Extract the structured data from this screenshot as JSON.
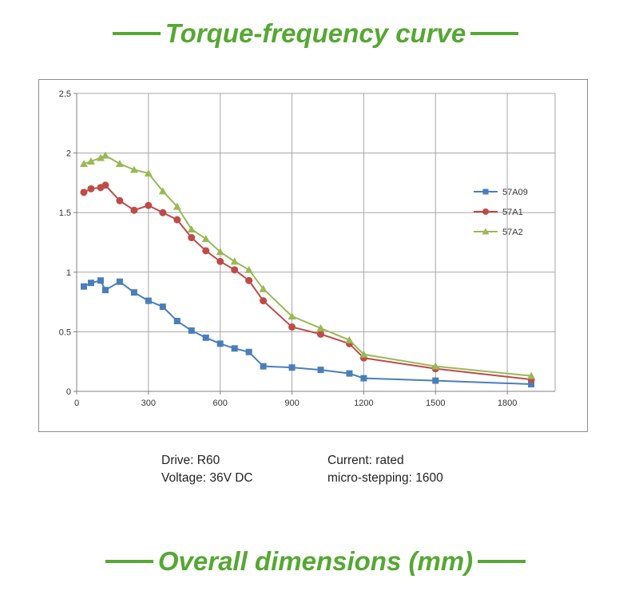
{
  "headings": {
    "top": "Torque-frequency curve",
    "bottom": "Overall dimensions (mm)"
  },
  "colors": {
    "accent": "#55a832",
    "series_57A09": "#4a7ebb",
    "series_57A1": "#be4b48",
    "series_57A2": "#98b954",
    "grid": "#a6a6a6"
  },
  "specs": {
    "drive": "Drive: R60",
    "voltage": "Voltage: 36V DC",
    "current": "Current: rated",
    "microstepping": "micro-stepping: 1600"
  },
  "chart_data": {
    "type": "line",
    "title": "",
    "xlabel": "",
    "ylabel": "",
    "xlim": [
      0,
      2000
    ],
    "ylim": [
      0,
      2.5
    ],
    "xticks": [
      0,
      300,
      600,
      900,
      1200,
      1500,
      1800
    ],
    "yticks": [
      0,
      0.5,
      1,
      1.5,
      2,
      2.5
    ],
    "ytick_labels": [
      "0",
      "0.5",
      "1",
      "1.5",
      "2",
      "2.5"
    ],
    "grid": true,
    "legend_position": "right",
    "series": [
      {
        "name": "57A09",
        "marker": "square",
        "x": [
          30,
          60,
          100,
          120,
          180,
          240,
          300,
          360,
          420,
          480,
          540,
          600,
          660,
          720,
          780,
          900,
          1020,
          1140,
          1200,
          1500,
          1900
        ],
        "y": [
          0.88,
          0.91,
          0.93,
          0.85,
          0.92,
          0.83,
          0.76,
          0.71,
          0.59,
          0.51,
          0.45,
          0.4,
          0.36,
          0.33,
          0.21,
          0.2,
          0.18,
          0.15,
          0.11,
          0.09,
          0.06
        ]
      },
      {
        "name": "57A1",
        "marker": "circle",
        "x": [
          30,
          60,
          100,
          120,
          180,
          240,
          300,
          360,
          420,
          480,
          540,
          600,
          660,
          720,
          780,
          900,
          1020,
          1140,
          1200,
          1500,
          1900
        ],
        "y": [
          1.67,
          1.7,
          1.71,
          1.73,
          1.6,
          1.52,
          1.56,
          1.5,
          1.44,
          1.29,
          1.18,
          1.09,
          1.02,
          0.93,
          0.76,
          0.54,
          0.48,
          0.4,
          0.28,
          0.19,
          0.1
        ]
      },
      {
        "name": "57A2",
        "marker": "triangle",
        "x": [
          30,
          60,
          100,
          120,
          180,
          240,
          300,
          360,
          420,
          480,
          540,
          600,
          660,
          720,
          780,
          900,
          1020,
          1140,
          1200,
          1500,
          1900
        ],
        "y": [
          1.91,
          1.93,
          1.96,
          1.98,
          1.91,
          1.86,
          1.83,
          1.68,
          1.55,
          1.36,
          1.28,
          1.17,
          1.09,
          1.02,
          0.86,
          0.63,
          0.53,
          0.43,
          0.31,
          0.21,
          0.13
        ]
      }
    ]
  }
}
